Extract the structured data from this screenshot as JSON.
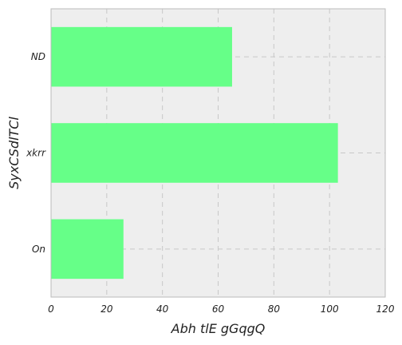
{
  "chart_data": {
    "type": "bar",
    "orientation": "horizontal",
    "title": "",
    "xlabel": "Abh tlE gGqgQ",
    "ylabel": "SyxCSdlTCl",
    "categories": [
      "On",
      "xkrr",
      "ND"
    ],
    "values": [
      26,
      103,
      65
    ],
    "xlim": [
      0,
      120
    ],
    "xticks": [
      0,
      20,
      40,
      60,
      80,
      100,
      120
    ],
    "grid": true,
    "colors": {
      "bar": "#66ff88",
      "plot_background": "#eeeeee",
      "frame": "#bbbbbb",
      "grid": "#c8c8c8"
    }
  }
}
